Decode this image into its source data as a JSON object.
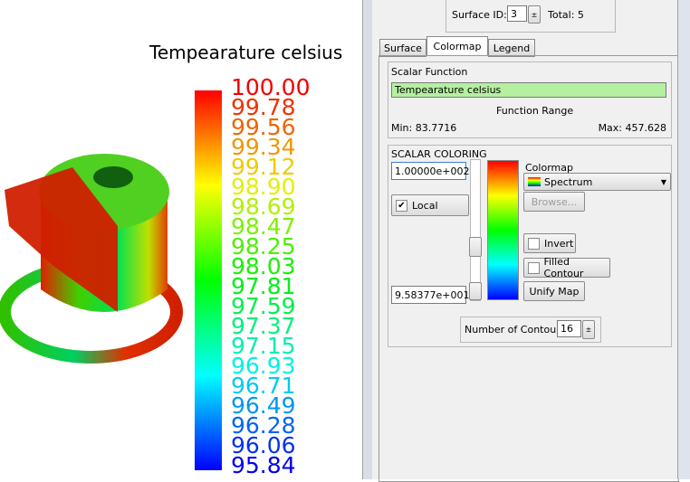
{
  "legend": {
    "title": "Tempearature celsius",
    "labels": [
      "100.00",
      "99.78",
      "99.56",
      "99.34",
      "99.12",
      "98.90",
      "98.69",
      "98.47",
      "98.25",
      "98.03",
      "97.81",
      "97.59",
      "97.37",
      "97.15",
      "96.93",
      "96.71",
      "96.49",
      "96.28",
      "96.06",
      "95.84"
    ]
  },
  "panel": {
    "surface_id_label": "Surface ID:",
    "surface_id": "3",
    "total": "Total: 5",
    "tabs": [
      "Surface",
      "Colormap",
      "Legend"
    ],
    "scalar_function": {
      "title": "Scalar Function",
      "value": "Tempearature celsius",
      "range_title": "Function Range",
      "min": "Min: 83.7716",
      "max": "Max: 457.628"
    },
    "scalar_coloring": {
      "title": "SCALAR COLORING",
      "max_value": "1.00000e+002",
      "local": "Local",
      "min_value": "9.58377e+001",
      "colormap_label": "Colormap",
      "colormap": "Spectrum",
      "browse": "Browse...",
      "invert": "Invert",
      "filled_contour": "Filled Contour",
      "unify_map": "Unify Map"
    },
    "contours_label": "Number of Contours:",
    "contours": "16"
  }
}
